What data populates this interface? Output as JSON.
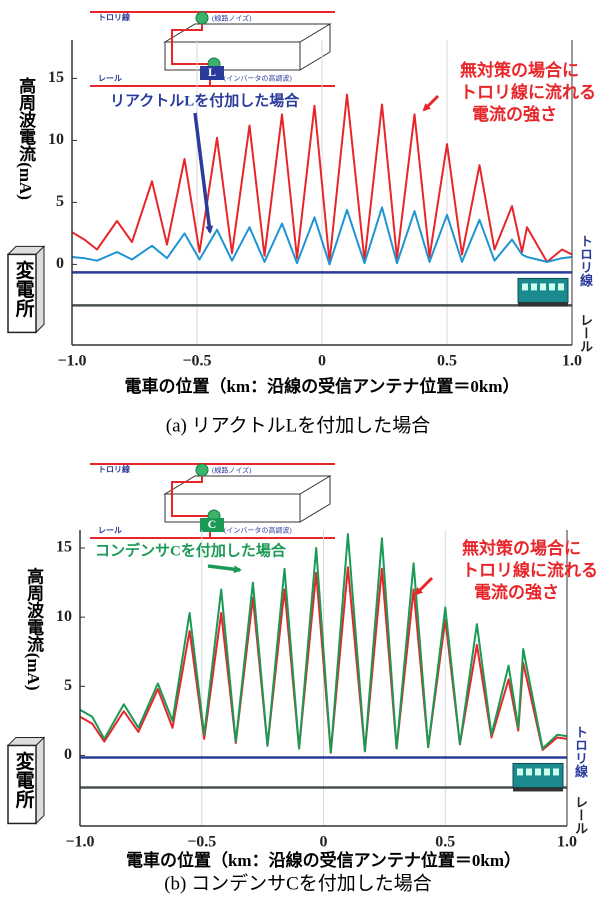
{
  "chart_data": [
    {
      "type": "line",
      "caption": "(a) リアクトルLを付加した場合",
      "x_label": "電車の位置（km：沿線の受信アンテナ位置＝0km）",
      "y_label": "高周波電流(mA)",
      "xlim": [
        -1.0,
        1.0
      ],
      "ylim": [
        -6.5,
        18.1
      ],
      "xticks": [
        {
          "value": -1.0,
          "label": "−1.0"
        },
        {
          "value": -0.5,
          "label": "−0.5"
        },
        0,
        0.5,
        {
          "value": 1.0,
          "label": "1.0"
        }
      ],
      "yticks": [
        0,
        5,
        10,
        15
      ],
      "grid": true,
      "x": [
        -1.0,
        -0.95,
        -0.9,
        -0.82,
        -0.76,
        -0.68,
        -0.62,
        -0.55,
        -0.49,
        -0.42,
        -0.36,
        -0.29,
        -0.23,
        -0.16,
        -0.1,
        -0.03,
        0.03,
        0.1,
        0.17,
        0.24,
        0.3,
        0.37,
        0.43,
        0.5,
        0.56,
        0.63,
        0.69,
        0.76,
        0.8,
        0.82,
        0.9,
        0.96,
        1.0
      ],
      "series": [
        {
          "name": [
            "無対策の場合に",
            "トロリ線に流れる",
            "電流の強さ"
          ],
          "color": "#e8262a",
          "values": [
            2.6,
            2.0,
            1.2,
            3.5,
            1.8,
            6.7,
            1.6,
            8.5,
            1.0,
            10.2,
            0.9,
            11.2,
            0.7,
            12.1,
            0.5,
            12.8,
            0.2,
            13.7,
            0.3,
            12.9,
            0.5,
            12.1,
            0.6,
            9.7,
            0.8,
            8.0,
            1.2,
            4.7,
            1.0,
            3.0,
            0.2,
            1.2,
            0.8
          ]
        },
        {
          "name": [
            "リアクトルLを付加した場合"
          ],
          "color": "#2094d2",
          "values": [
            0.6,
            0.5,
            0.3,
            1.0,
            0.4,
            1.5,
            0.5,
            2.5,
            0.4,
            2.8,
            0.3,
            3.0,
            0.2,
            3.3,
            0.1,
            3.8,
            0.0,
            4.4,
            0.1,
            4.6,
            0.1,
            4.3,
            0.2,
            4.0,
            0.2,
            3.6,
            0.3,
            2.0,
            0.8,
            0.6,
            0.2,
            0.5,
            0.6
          ]
        }
      ],
      "line_labels": [
        "トロリ線",
        "レール"
      ],
      "substation": "変電所",
      "diagram": {
        "trolley": "トロリ線",
        "rail": "レール",
        "noise": "(線路ノイズ)",
        "inverter": "(インバータの高調波)",
        "element": "L"
      }
    },
    {
      "type": "line",
      "caption": "(b) コンデンサCを付加した場合",
      "x_label": "電車の位置（km：沿線の受信アンテナ位置＝0km）",
      "y_label": "高周波電流(mA)",
      "xlim": [
        -1.0,
        1.0
      ],
      "ylim": [
        -5.1,
        16.3
      ],
      "xticks": [
        {
          "value": -1.0,
          "label": "−1.0"
        },
        {
          "value": -0.5,
          "label": "−0.5"
        },
        0,
        0.5,
        {
          "value": 1.0,
          "label": "1.0"
        }
      ],
      "yticks": [
        0,
        5,
        10,
        15
      ],
      "grid": true,
      "x": [
        -1.0,
        -0.95,
        -0.9,
        -0.82,
        -0.76,
        -0.68,
        -0.62,
        -0.55,
        -0.49,
        -0.42,
        -0.36,
        -0.29,
        -0.23,
        -0.16,
        -0.1,
        -0.03,
        0.03,
        0.1,
        0.17,
        0.24,
        0.3,
        0.37,
        0.43,
        0.5,
        0.56,
        0.63,
        0.69,
        0.76,
        0.8,
        0.82,
        0.9,
        0.96,
        1.0
      ],
      "series": [
        {
          "name": [
            "無対策の場合に",
            "トロリ線に流れる",
            "電流の強さ"
          ],
          "color": "#e8262a",
          "values": [
            2.8,
            2.3,
            1.0,
            3.2,
            1.7,
            4.8,
            2.0,
            9.0,
            1.2,
            10.3,
            0.9,
            11.4,
            0.7,
            12.0,
            0.5,
            13.2,
            0.2,
            13.6,
            0.3,
            13.5,
            0.5,
            12.0,
            0.6,
            9.8,
            0.8,
            8.0,
            1.3,
            5.5,
            1.8,
            6.7,
            0.4,
            1.3,
            1.2
          ]
        },
        {
          "name": [
            "コンデンサCを付加した場合"
          ],
          "color": "#1a9a55",
          "values": [
            3.3,
            2.8,
            1.2,
            3.7,
            2.0,
            5.2,
            2.5,
            10.3,
            1.5,
            12.0,
            1.0,
            12.5,
            0.7,
            13.5,
            0.5,
            15.0,
            0.2,
            16.0,
            0.3,
            15.7,
            0.5,
            13.9,
            0.6,
            10.7,
            0.8,
            9.5,
            1.5,
            6.5,
            2.0,
            7.7,
            0.5,
            1.5,
            1.4
          ]
        }
      ],
      "line_labels": [
        "トロリ線",
        "レール"
      ],
      "substation": "変電所",
      "diagram": {
        "trolley": "トロリ線",
        "rail": "レール",
        "noise": "(線路ノイズ)",
        "inverter": "(インバータの高調波)",
        "element": "C"
      }
    }
  ]
}
